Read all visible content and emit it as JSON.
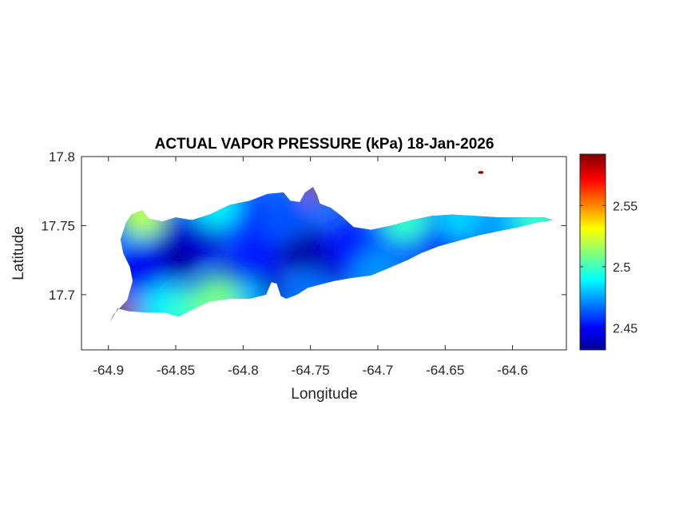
{
  "chart_data": {
    "type": "heatmap",
    "title": "ACTUAL VAPOR PRESSURE (kPa) 18-Jan-2026",
    "xlabel": "Longitude",
    "ylabel": "Latitude",
    "xlim": [
      -64.92,
      -64.56
    ],
    "ylim": [
      17.66,
      17.8
    ],
    "x_ticks": [
      -64.9,
      -64.85,
      -64.8,
      -64.75,
      -64.7,
      -64.65,
      -64.6
    ],
    "x_tick_labels": [
      "-64.9",
      "-64.85",
      "-64.8",
      "-64.75",
      "-64.7",
      "-64.65",
      "-64.6"
    ],
    "y_ticks": [
      17.7,
      17.75,
      17.8
    ],
    "y_tick_labels": [
      "17.7",
      "17.75",
      "17.8"
    ],
    "colorbar": {
      "colormap": "jet",
      "range": [
        2.432,
        2.592
      ],
      "ticks": [
        2.45,
        2.5,
        2.55
      ],
      "tick_labels": [
        "2.45",
        "2.5",
        "2.55"
      ]
    },
    "grid": false,
    "region_outline": [
      [
        -64.889,
        17.73
      ],
      [
        -64.891,
        17.74
      ],
      [
        -64.887,
        17.752
      ],
      [
        -64.883,
        17.758
      ],
      [
        -64.875,
        17.761
      ],
      [
        -64.87,
        17.755
      ],
      [
        -64.86,
        17.753
      ],
      [
        -64.85,
        17.756
      ],
      [
        -64.838,
        17.754
      ],
      [
        -64.825,
        17.758
      ],
      [
        -64.81,
        17.765
      ],
      [
        -64.795,
        17.768
      ],
      [
        -64.782,
        17.773
      ],
      [
        -64.77,
        17.774
      ],
      [
        -64.765,
        17.768
      ],
      [
        -64.758,
        17.767
      ],
      [
        -64.754,
        17.774
      ],
      [
        -64.748,
        17.778
      ],
      [
        -64.745,
        17.772
      ],
      [
        -64.743,
        17.766
      ],
      [
        -64.735,
        17.763
      ],
      [
        -64.727,
        17.757
      ],
      [
        -64.718,
        17.749
      ],
      [
        -64.705,
        17.747
      ],
      [
        -64.69,
        17.75
      ],
      [
        -64.675,
        17.754
      ],
      [
        -64.66,
        17.757
      ],
      [
        -64.645,
        17.758
      ],
      [
        -64.628,
        17.757
      ],
      [
        -64.61,
        17.756
      ],
      [
        -64.595,
        17.756
      ],
      [
        -64.576,
        17.756
      ],
      [
        -64.57,
        17.754
      ],
      [
        -64.583,
        17.752
      ],
      [
        -64.595,
        17.749
      ],
      [
        -64.61,
        17.746
      ],
      [
        -64.625,
        17.743
      ],
      [
        -64.64,
        17.739
      ],
      [
        -64.655,
        17.735
      ],
      [
        -64.668,
        17.73
      ],
      [
        -64.678,
        17.725
      ],
      [
        -64.69,
        17.72
      ],
      [
        -64.705,
        17.714
      ],
      [
        -64.72,
        17.712
      ],
      [
        -64.732,
        17.71
      ],
      [
        -64.74,
        17.708
      ],
      [
        -64.752,
        17.705
      ],
      [
        -64.76,
        17.7
      ],
      [
        -64.768,
        17.697
      ],
      [
        -64.772,
        17.699
      ],
      [
        -64.775,
        17.708
      ],
      [
        -64.779,
        17.709
      ],
      [
        -64.783,
        17.7
      ],
      [
        -64.795,
        17.697
      ],
      [
        -64.81,
        17.697
      ],
      [
        -64.825,
        17.695
      ],
      [
        -64.84,
        17.688
      ],
      [
        -64.848,
        17.684
      ],
      [
        -64.858,
        17.687
      ],
      [
        -64.872,
        17.687
      ],
      [
        -64.885,
        17.688
      ],
      [
        -64.893,
        17.69
      ],
      [
        -64.899,
        17.68
      ],
      [
        -64.896,
        17.686
      ],
      [
        -64.886,
        17.696
      ],
      [
        -64.882,
        17.71
      ],
      [
        -64.884,
        17.72
      ]
    ],
    "field_points": [
      {
        "x": -64.848,
        "y": 17.73,
        "value": 2.435
      },
      {
        "x": -64.865,
        "y": 17.742,
        "value": 2.44
      },
      {
        "x": -64.83,
        "y": 17.743,
        "value": 2.445
      },
      {
        "x": -64.875,
        "y": 17.72,
        "value": 2.45
      },
      {
        "x": -64.81,
        "y": 17.705,
        "value": 2.44
      },
      {
        "x": -64.788,
        "y": 17.705,
        "value": 2.44
      },
      {
        "x": -64.76,
        "y": 17.735,
        "value": 2.435
      },
      {
        "x": -64.74,
        "y": 17.725,
        "value": 2.44
      },
      {
        "x": -64.79,
        "y": 17.73,
        "value": 2.455
      },
      {
        "x": -64.8,
        "y": 17.755,
        "value": 2.46
      },
      {
        "x": -64.77,
        "y": 17.755,
        "value": 2.465
      },
      {
        "x": -64.72,
        "y": 17.735,
        "value": 2.455
      },
      {
        "x": -64.69,
        "y": 17.735,
        "value": 2.465
      },
      {
        "x": -64.66,
        "y": 17.745,
        "value": 2.46
      },
      {
        "x": -64.645,
        "y": 17.745,
        "value": 2.455
      },
      {
        "x": -64.62,
        "y": 17.748,
        "value": 2.47
      },
      {
        "x": -64.6,
        "y": 17.752,
        "value": 2.48
      },
      {
        "x": -64.58,
        "y": 17.755,
        "value": 2.5
      },
      {
        "x": -64.858,
        "y": 17.69,
        "value": 2.49
      },
      {
        "x": -64.875,
        "y": 17.755,
        "value": 2.485
      },
      {
        "x": -64.8,
        "y": 17.695,
        "value": 2.48
      },
      {
        "x": -64.82,
        "y": 17.765,
        "value": 2.49
      },
      {
        "x": -64.75,
        "y": 17.7,
        "value": 2.47
      },
      {
        "x": -64.7,
        "y": 17.716,
        "value": 2.475
      },
      {
        "x": -64.68,
        "y": 17.755,
        "value": 2.5
      },
      {
        "x": -64.64,
        "y": 17.757,
        "value": 2.485
      },
      {
        "x": -64.895,
        "y": 17.682,
        "value": 2.59
      },
      {
        "x": -64.888,
        "y": 17.689,
        "value": 2.56
      },
      {
        "x": -64.746,
        "y": 17.776,
        "value": 2.56
      },
      {
        "x": -64.875,
        "y": 17.76,
        "value": 2.52
      },
      {
        "x": -64.84,
        "y": 17.688,
        "value": 2.5
      },
      {
        "x": -64.82,
        "y": 17.695,
        "value": 2.51
      },
      {
        "x": -64.623,
        "y": 17.788,
        "value": 2.59
      }
    ],
    "islet_markers": [
      {
        "x": -64.6235,
        "y": 17.7885,
        "value": 2.59
      }
    ]
  },
  "colors": {
    "axes": "#262626",
    "title": "#000000",
    "background": "#ffffff"
  }
}
